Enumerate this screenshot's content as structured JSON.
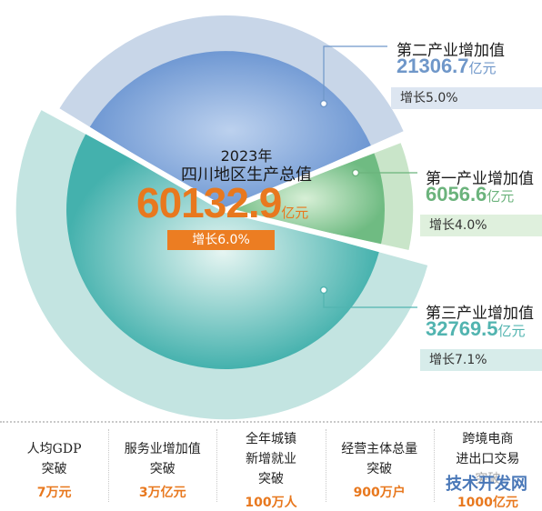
{
  "chart_data": {
    "type": "pie",
    "year_label": "2023年",
    "center_title": "四川地区生产总值",
    "total_value": "60132.9",
    "unit": "亿元",
    "total_growth": "增长6.0%",
    "slices": [
      {
        "name": "第二产业增加值",
        "value": 21306.7,
        "value_text": "21306.7",
        "growth": "增长5.0%"
      },
      {
        "name": "第一产业增加值",
        "value": 6056.6,
        "value_text": "6056.6",
        "growth": "增长4.0%"
      },
      {
        "name": "第三产业增加值",
        "value": 32769.5,
        "value_text": "32769.5",
        "growth": "增长7.1%"
      }
    ],
    "growth_rates": [
      5.0,
      4.0,
      7.1
    ]
  },
  "colors": {
    "secondary_inner": "#7aa3d8",
    "secondary_outer": "#c8d6e8",
    "secondary_text": "#6f97c9",
    "secondary_badge": "#dde6f1",
    "primary_inner": "#7cc08c",
    "primary_outer": "#c9e5c9",
    "primary_text": "#6bb37c",
    "primary_badge": "#dff0dd",
    "tertiary_inner": "#52b8b4",
    "tertiary_outer": "#c3e4e1",
    "tertiary_text": "#52b4b0",
    "tertiary_badge": "#d7ecea",
    "accent": "#e8781e"
  },
  "stats": [
    {
      "label": "人均GDP\n突破",
      "value": "7万元"
    },
    {
      "label": "服务业增加值\n突破",
      "value": "3万亿元"
    },
    {
      "label": "全年城镇\n新增就业\n突破",
      "value": "100万人"
    },
    {
      "label": "经营主体总量\n突破",
      "value": "900万户"
    },
    {
      "label": "跨境电商\n进出口交易\n突破",
      "value": "1000亿元"
    }
  ],
  "watermark": "技术开发网"
}
